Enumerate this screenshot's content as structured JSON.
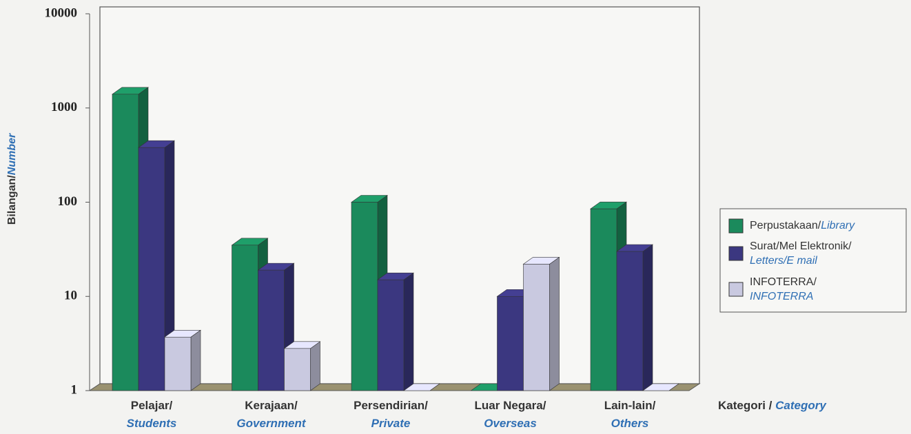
{
  "chart_data": {
    "type": "bar3d",
    "ylabel": [
      "Bilangan/",
      "Number"
    ],
    "xlabel": [
      "Kategori / ",
      "Category"
    ],
    "categories": [
      [
        "Pelajar/",
        "Students"
      ],
      [
        "Kerajaan/",
        "Government"
      ],
      [
        "Persendirian/",
        "Private"
      ],
      [
        "Luar Negara/",
        "Overseas"
      ],
      [
        "Lain-lain/",
        "Others"
      ]
    ],
    "series": [
      {
        "name": [
          "Perpustakaan/",
          "Library"
        ],
        "color": "#1b8a5c",
        "values": [
          1400,
          35,
          100,
          1,
          85
        ]
      },
      {
        "name": [
          "Surat/Mel Elektronik/",
          "Letters/E mail"
        ],
        "color": "#3b3780",
        "values": [
          380,
          19,
          15,
          10,
          30
        ]
      },
      {
        "name": [
          "INFOTERRA/",
          "INFOTERRA"
        ],
        "color": "#c9c9e0",
        "values": [
          3.7,
          2.8,
          1,
          22,
          1
        ]
      }
    ],
    "ylim": [
      1,
      10000
    ],
    "yticks": [
      1,
      10,
      100,
      1000,
      10000
    ],
    "log": true
  }
}
